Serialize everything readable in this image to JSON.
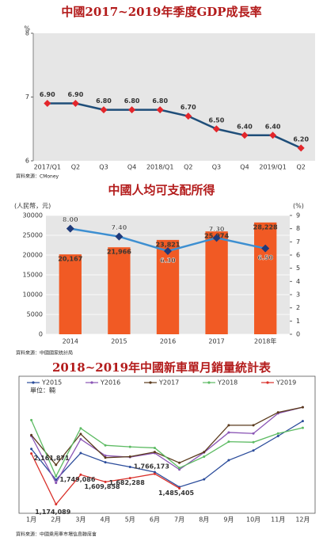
{
  "chart_data": [
    {
      "type": "line",
      "title": "中國2017~2019年季度GDP成長率",
      "y_label": "%",
      "categories": [
        "2017/Q1",
        "Q2",
        "Q3",
        "Q4",
        "2018/Q1",
        "Q2",
        "Q3",
        "Q4",
        "2019/Q1",
        "Q2"
      ],
      "values": [
        6.9,
        6.9,
        6.8,
        6.8,
        6.8,
        6.7,
        6.5,
        6.4,
        6.4,
        6.2
      ],
      "value_labels": [
        "6.90",
        "6.90",
        "6.80",
        "6.80",
        "6.80",
        "6.70",
        "6.50",
        "6.40",
        "6.40",
        "6.20"
      ],
      "color": "#1f4e79",
      "marker_color": "#e3262b",
      "ylim": [
        6,
        8
      ],
      "yticks": [
        6,
        7,
        8
      ],
      "source": "資料來源：CMoney"
    },
    {
      "type": "bar",
      "title": "中國人均可支配所得",
      "y_label": "(人民幣，元)",
      "y2_label": "(%)",
      "categories": [
        "2014",
        "2015",
        "2016",
        "2017",
        "2018年"
      ],
      "series": [
        {
          "color": "#f15a24",
          "values": [
            20167,
            21966,
            23821,
            25974,
            28228
          ],
          "value_labels": [
            "20,167",
            "21,966",
            "23,821",
            "25,974",
            "28,228"
          ]
        },
        {
          "color": "#3d8fd1",
          "marker_color": "#1f3a7a",
          "axis": "y2",
          "values": [
            8.0,
            7.4,
            6.3,
            7.3,
            6.5
          ],
          "value_labels": [
            "8.00",
            "7.40",
            "6.30",
            "7.30",
            "6.50"
          ]
        }
      ],
      "ylim": [
        0,
        30000
      ],
      "yticks": [
        0,
        5000,
        10000,
        15000,
        20000,
        25000,
        30000
      ],
      "y2lim": [
        0,
        9
      ],
      "y2ticks": [
        0,
        1,
        2,
        3,
        4,
        5,
        6,
        7,
        8,
        9
      ],
      "grid": true,
      "source": "資料來源：中國國家統計局"
    },
    {
      "type": "line",
      "title": "2018~2019年中國新車單月銷量統計表",
      "annotation": "單位：輛",
      "categories": [
        "1月",
        "2月",
        "3月",
        "4月",
        "5月",
        "6月",
        "7月",
        "8月",
        "9月",
        "10月",
        "11月",
        "12月"
      ],
      "series": [
        {
          "name": "Y2015",
          "color": "#2b4c9b",
          "values": [
            2250000,
            1650000,
            2170000,
            1990000,
            1900000,
            1800000,
            1510000,
            1660000,
            2030000,
            2220000,
            2500000,
            2790000
          ]
        },
        {
          "name": "Y2016",
          "color": "#8a55b5",
          "values": [
            2500000,
            1590000,
            2440000,
            2120000,
            2090000,
            2170000,
            1850000,
            2180000,
            2570000,
            2550000,
            2940000,
            3060000
          ]
        },
        {
          "name": "Y2017",
          "color": "#5a3a1c",
          "values": [
            2520000,
            1940000,
            2540000,
            2080000,
            2100000,
            2190000,
            1980000,
            2190000,
            2710000,
            2710000,
            2960000,
            3060000
          ]
        },
        {
          "name": "Y2018",
          "color": "#5dbb63",
          "values": [
            2810000,
            1720000,
            2650000,
            2320000,
            2290000,
            2270000,
            1880000,
            2100000,
            2390000,
            2380000,
            2550000,
            2660000
          ]
        },
        {
          "name": "Y2019",
          "color": "#d9302a",
          "values": [
            2161871,
            1174089,
            1749086,
            1609858,
            1682288,
            1766173,
            1485405,
            null,
            null,
            null,
            null,
            null
          ],
          "value_labels": [
            "2,161,871",
            "1,174,089",
            "1,749,086",
            "1,609,858",
            "1,682,288",
            "1,766,173",
            "1,485,405",
            null,
            null,
            null,
            null,
            null
          ]
        }
      ],
      "ylim": [
        1000000,
        3200000
      ],
      "source": "資料來源：中國乘用車市場信息聯席會"
    }
  ]
}
